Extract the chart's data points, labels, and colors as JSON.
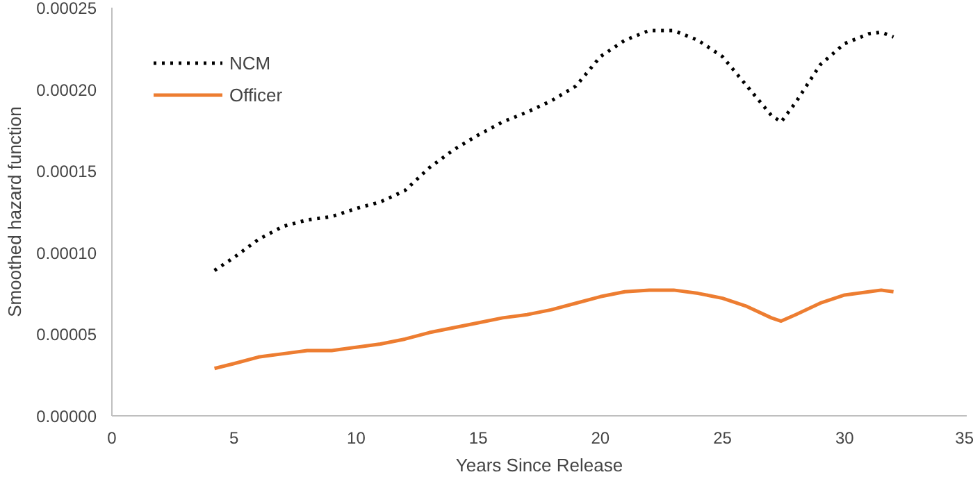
{
  "chart_data": {
    "type": "line",
    "xlabel": "Years Since Release",
    "ylabel": "Smoothed hazard function",
    "xlim": [
      0,
      35
    ],
    "xticks": [
      0,
      5,
      10,
      15,
      20,
      25,
      30,
      35
    ],
    "ylim": [
      0,
      0.00025
    ],
    "yticks": [
      {
        "value": 0,
        "label": "0.00000"
      },
      {
        "value": 5e-05,
        "label": "0.00005"
      },
      {
        "value": 0.0001,
        "label": "0.00010"
      },
      {
        "value": 0.00015,
        "label": "0.00015"
      },
      {
        "value": 0.0002,
        "label": "0.00020"
      },
      {
        "value": 0.00025,
        "label": "0.00025"
      }
    ],
    "grid": false,
    "legend": "top left",
    "marker": "none",
    "x": [
      4.2,
      5,
      6,
      7,
      8,
      9,
      10,
      11,
      12,
      13,
      14,
      15,
      16,
      17,
      18,
      19,
      20,
      21,
      22,
      23,
      24,
      25,
      26,
      27,
      27.4,
      28,
      29,
      30,
      31,
      31.5,
      32
    ],
    "series": [
      {
        "name": "NCM",
        "color": "#000000",
        "line_style": "dotted",
        "values": [
          8.9e-05,
          9.7e-05,
          0.000108,
          0.000116,
          0.00012,
          0.000122,
          0.000127,
          0.000131,
          0.000138,
          0.000152,
          0.000163,
          0.000172,
          0.00018,
          0.000186,
          0.000193,
          0.000202,
          0.00022,
          0.00023,
          0.000236,
          0.000236,
          0.00023,
          0.00022,
          0.000202,
          0.000184,
          0.00018,
          0.000192,
          0.000215,
          0.000228,
          0.000234,
          0.000235,
          0.000232
        ]
      },
      {
        "name": "Officer",
        "color": "#ed7d31",
        "line_style": "solid",
        "values": [
          2.9e-05,
          3.2e-05,
          3.6e-05,
          3.8e-05,
          4e-05,
          4e-05,
          4.2e-05,
          4.4e-05,
          4.7e-05,
          5.1e-05,
          5.4e-05,
          5.7e-05,
          6e-05,
          6.2e-05,
          6.5e-05,
          6.9e-05,
          7.3e-05,
          7.6e-05,
          7.7e-05,
          7.7e-05,
          7.5e-05,
          7.2e-05,
          6.7e-05,
          6e-05,
          5.8e-05,
          6.2e-05,
          6.9e-05,
          7.4e-05,
          7.6e-05,
          7.7e-05,
          7.6e-05
        ]
      }
    ]
  }
}
